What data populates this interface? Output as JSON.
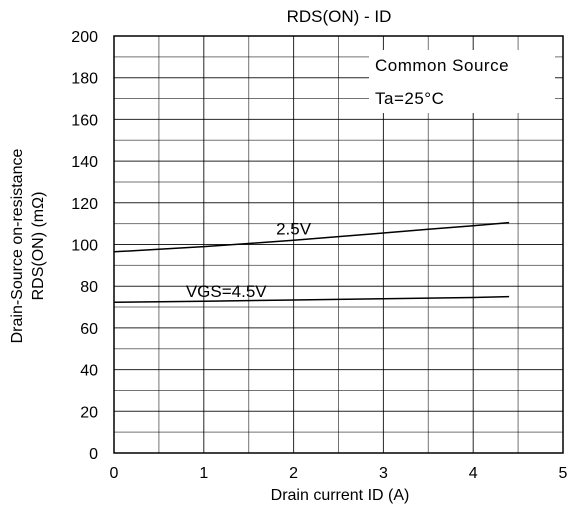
{
  "chart_data": {
    "type": "line",
    "title": "RDS(ON) - ID",
    "xlabel": "Drain current  ID (A)",
    "ylabel": [
      "Drain-Source on-resistance",
      "RDS(ON) (mΩ)"
    ],
    "xlim": [
      0,
      5
    ],
    "ylim": [
      0,
      200
    ],
    "x_ticks": [
      "0",
      "1",
      "2",
      "3",
      "4",
      "5"
    ],
    "y_ticks": [
      "0",
      "20",
      "40",
      "60",
      "80",
      "100",
      "120",
      "140",
      "160",
      "180",
      "200"
    ],
    "grid": true,
    "legend": {
      "position": "top-right",
      "lines": [
        "Common Source",
        "Ta=25°C"
      ]
    },
    "series": [
      {
        "name": "2.5V",
        "x": [
          0,
          0.5,
          1,
          1.5,
          2,
          2.5,
          3,
          3.5,
          4,
          4.4
        ],
        "y": [
          96.5,
          97.7,
          99,
          100.5,
          102,
          103.8,
          105.5,
          107.3,
          109,
          110.5
        ]
      },
      {
        "name": "VGS=4.5V",
        "x": [
          0,
          1,
          2,
          3,
          4,
          4.4
        ],
        "y": [
          72.3,
          72.8,
          73.4,
          74,
          74.6,
          75
        ]
      }
    ],
    "colors": {
      "line": "#000000",
      "grid": "#000000",
      "background": "#ffffff"
    }
  }
}
